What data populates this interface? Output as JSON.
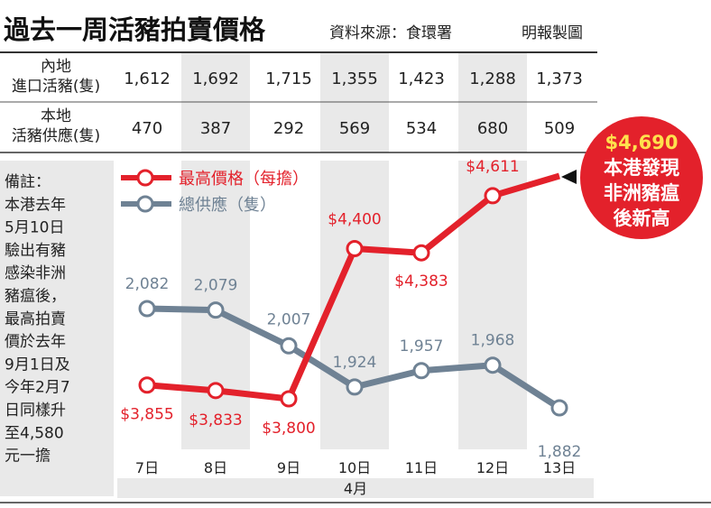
{
  "header": {
    "title": "過去一周活豬拍賣價格",
    "source": "資料來源：食環署",
    "credit": "明報製圖"
  },
  "table": {
    "rows": [
      {
        "label_lines": [
          "內地",
          "進口活豬(隻)"
        ],
        "values": [
          "1,612",
          "1,692",
          "1,715",
          "1,355",
          "1,423",
          "1,288",
          "1,373"
        ]
      },
      {
        "label_lines": [
          "本地",
          "活豬供應(隻)"
        ],
        "values": [
          "470",
          "387",
          "292",
          "569",
          "534",
          "680",
          "509"
        ]
      }
    ]
  },
  "note": {
    "lines": [
      "備註：",
      "本港去年",
      "5月10日",
      "驗出有豬",
      "感染非洲",
      "豬瘟後，",
      "最高拍賣",
      "價於去年",
      "9月1日及",
      "今年2月7",
      "日同樣升",
      "至4,580",
      "元一擔"
    ]
  },
  "callout": {
    "lines": [
      "$4,690",
      "本港發現",
      "非洲豬瘟",
      "後新高"
    ]
  },
  "chart_data": {
    "type": "line",
    "categories": [
      "7日",
      "8日",
      "9日",
      "10日",
      "11日",
      "12日",
      "13日"
    ],
    "xlabel": "4月",
    "series": [
      {
        "name": "最高價格（每擔）",
        "color": "#e3212b",
        "values": [
          3855,
          3833,
          3800,
          4400,
          4383,
          4611,
          4690
        ],
        "labels": [
          "$3,855",
          "$3,833",
          "$3,800",
          "$4,400",
          "$4,383",
          "$4,611",
          ""
        ]
      },
      {
        "name": "總供應（隻）",
        "color": "#6f8294",
        "values": [
          2082,
          2079,
          2007,
          1924,
          1957,
          1968,
          1882
        ],
        "labels": [
          "2,082",
          "2,079",
          "2,007",
          "1,924",
          "1,957",
          "1,968",
          "1,882"
        ]
      }
    ],
    "colors": {
      "grid_shade": "#e9e9e9",
      "rule": "#333333"
    }
  }
}
